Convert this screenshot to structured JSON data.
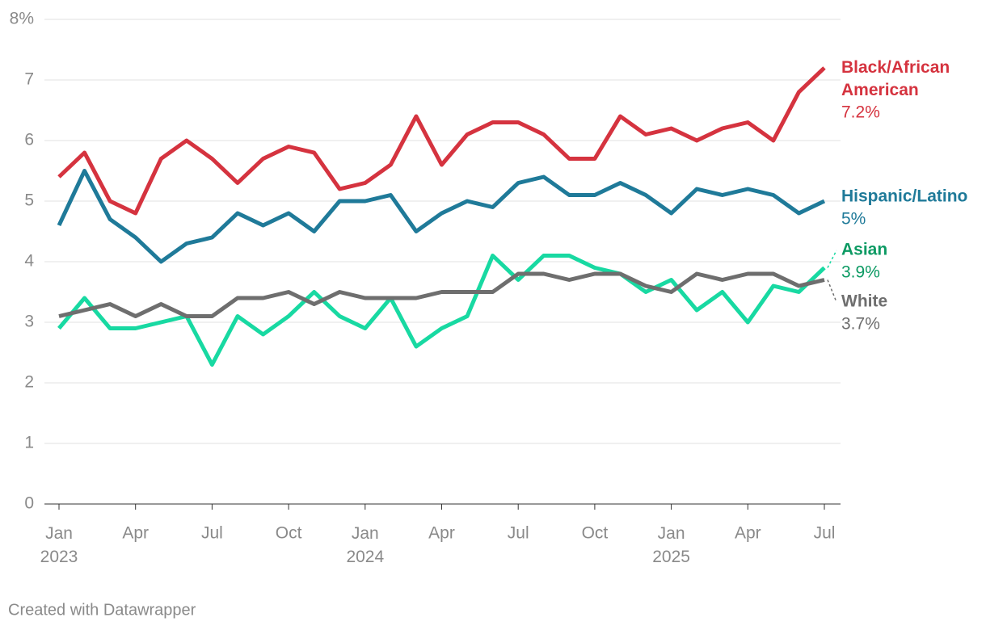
{
  "chart_data": {
    "type": "line",
    "categories": [
      "Jan 2023",
      null,
      null,
      "Apr",
      null,
      null,
      "Jul",
      null,
      null,
      "Oct",
      null,
      null,
      "Jan 2024",
      null,
      null,
      "Apr",
      null,
      null,
      "Jul",
      null,
      null,
      "Oct",
      null,
      null,
      "Jan 2025",
      null,
      null,
      "Apr",
      null,
      null,
      "Jul"
    ],
    "series": [
      {
        "name": "Black/African American",
        "color": "#d5333f",
        "label_color": "#d5333f",
        "values": [
          5.4,
          5.8,
          5.0,
          4.8,
          5.7,
          6.0,
          5.7,
          5.3,
          5.7,
          5.9,
          5.8,
          5.2,
          5.3,
          5.6,
          6.4,
          5.6,
          6.1,
          6.3,
          6.3,
          6.1,
          5.7,
          5.7,
          6.4,
          6.1,
          6.2,
          6.0,
          6.2,
          6.3,
          6.0,
          6.8,
          7.2
        ],
        "value_labels": [
          null,
          null,
          null,
          null,
          null,
          null,
          null,
          null,
          null,
          null,
          null,
          null,
          null,
          null,
          null,
          null,
          null,
          null,
          null,
          null,
          null,
          null,
          null,
          null,
          null,
          null,
          null,
          null,
          null,
          null,
          "7.2%"
        ]
      },
      {
        "name": "Hispanic/Latino",
        "color": "#1f7a99",
        "label_color": "#1f7a99",
        "values": [
          4.6,
          5.5,
          4.7,
          4.4,
          4.0,
          4.3,
          4.4,
          4.8,
          4.6,
          4.8,
          4.5,
          5.0,
          5.0,
          5.1,
          4.5,
          4.8,
          5.0,
          4.9,
          5.3,
          5.4,
          5.1,
          5.1,
          5.3,
          5.1,
          4.8,
          5.2,
          5.1,
          5.2,
          5.1,
          4.8,
          5.0
        ],
        "value_labels": [
          null,
          null,
          null,
          null,
          null,
          null,
          null,
          null,
          null,
          null,
          null,
          null,
          null,
          null,
          null,
          null,
          null,
          null,
          null,
          null,
          null,
          null,
          null,
          null,
          null,
          null,
          null,
          null,
          null,
          null,
          "5%"
        ]
      },
      {
        "name": "Asian",
        "color": "#18d9a2",
        "label_color": "#0c9a63",
        "values": [
          2.9,
          3.4,
          2.9,
          2.9,
          3.0,
          3.1,
          2.3,
          3.1,
          2.8,
          3.1,
          3.5,
          3.1,
          2.9,
          3.4,
          2.6,
          2.9,
          3.1,
          4.1,
          3.7,
          4.1,
          4.1,
          3.9,
          3.8,
          3.5,
          3.7,
          3.2,
          3.5,
          3.0,
          3.6,
          3.5,
          3.9
        ],
        "value_labels": [
          null,
          null,
          null,
          null,
          null,
          null,
          null,
          null,
          null,
          null,
          null,
          null,
          null,
          null,
          null,
          null,
          null,
          null,
          null,
          null,
          null,
          null,
          null,
          null,
          null,
          null,
          null,
          null,
          null,
          null,
          "3.9%"
        ]
      },
      {
        "name": "White",
        "color": "#6e6e6e",
        "label_color": "#6e6e6e",
        "values": [
          3.1,
          3.2,
          3.3,
          3.1,
          3.3,
          3.1,
          3.1,
          3.4,
          3.4,
          3.5,
          3.3,
          3.5,
          3.4,
          3.4,
          3.4,
          3.5,
          3.5,
          3.5,
          3.8,
          3.8,
          3.7,
          3.8,
          3.8,
          3.6,
          3.5,
          3.8,
          3.7,
          3.8,
          3.8,
          3.6,
          3.7
        ],
        "value_labels": [
          null,
          null,
          null,
          null,
          null,
          null,
          null,
          null,
          null,
          null,
          null,
          null,
          null,
          null,
          null,
          null,
          null,
          null,
          null,
          null,
          null,
          null,
          null,
          null,
          null,
          null,
          null,
          null,
          null,
          null,
          "3.7%"
        ]
      }
    ],
    "ylim": [
      0,
      8
    ],
    "yticks": [
      0,
      1,
      2,
      3,
      4,
      5,
      6,
      7,
      {
        "value": 8,
        "label": "8%"
      }
    ],
    "grid": true,
    "footer": "Created with Datawrapper"
  }
}
